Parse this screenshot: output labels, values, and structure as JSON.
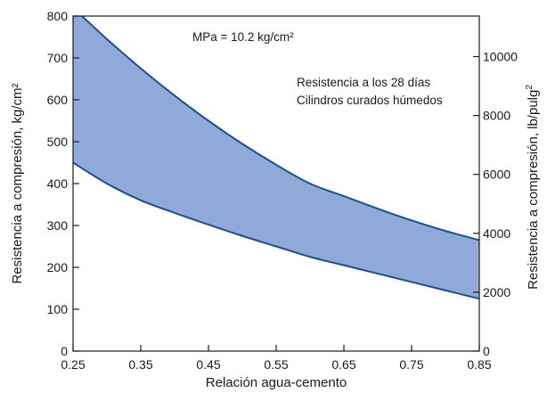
{
  "chart_data": {
    "type": "area",
    "xlabel": "Relación agua-cemento",
    "ylabel": "Resistencia a compresión, kg/cm²",
    "y2label_base": "Resistencia a compresión, lb/pulg",
    "y2label_sup": "2",
    "xlim": [
      0.25,
      0.85
    ],
    "ylim": [
      0,
      800
    ],
    "y2lim": [
      0,
      11378
    ],
    "xticks": [
      "0.25",
      "0.35",
      "0.45",
      "0.55",
      "0.65",
      "0.75",
      "0.85"
    ],
    "yticks": [
      "0",
      "100",
      "200",
      "300",
      "400",
      "500",
      "600",
      "700",
      "800"
    ],
    "y2ticks": [
      "0",
      "2000",
      "4000",
      "6000",
      "8000",
      "10000"
    ],
    "annotations": {
      "conversion": "MPa = 10.2 kg/cm²",
      "line1": "Resistencia a los 28 días",
      "line2": "Cilindros curados húmedos"
    },
    "band_color": "#8fa9d9",
    "line_color": "#1f4e8c",
    "series": [
      {
        "x": [
          0.25,
          0.3,
          0.35,
          0.4,
          0.45,
          0.5,
          0.55,
          0.6,
          0.65,
          0.7,
          0.75,
          0.8,
          0.85
        ],
        "y": [
          820,
          745,
          675,
          610,
          550,
          495,
          445,
          400,
          370,
          340,
          312,
          287,
          265
        ]
      },
      {
        "x": [
          0.25,
          0.3,
          0.35,
          0.4,
          0.45,
          0.5,
          0.55,
          0.6,
          0.65,
          0.7,
          0.75,
          0.8,
          0.85
        ],
        "y": [
          450,
          400,
          360,
          330,
          302,
          275,
          250,
          225,
          205,
          185,
          165,
          145,
          125
        ]
      }
    ]
  }
}
